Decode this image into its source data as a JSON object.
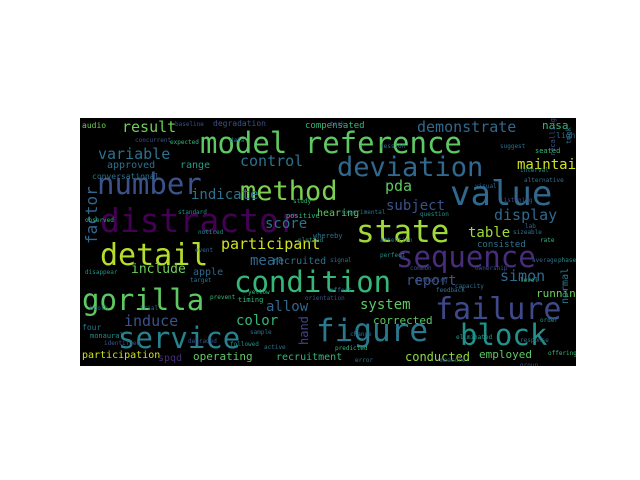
{
  "words": [
    {
      "text": "model reference",
      "color": "#5ec962"
    },
    {
      "text": "number",
      "color": "#3b528b"
    },
    {
      "text": "method",
      "color": "#7ad151"
    },
    {
      "text": "deviation",
      "color": "#31688e"
    },
    {
      "text": "value",
      "color": "#31688e"
    },
    {
      "text": "distractor",
      "color": "#440154"
    },
    {
      "text": "state",
      "color": "#a0da39"
    },
    {
      "text": "detail",
      "color": "#b5de2b"
    },
    {
      "text": "condition",
      "color": "#35b779"
    },
    {
      "text": "sequence",
      "color": "#472d7b"
    },
    {
      "text": "gorilla",
      "color": "#5ec962"
    },
    {
      "text": "failure",
      "color": "#3e4989"
    },
    {
      "text": "service",
      "color": "#26828e"
    },
    {
      "text": "figure",
      "color": "#2a788e"
    },
    {
      "text": "block",
      "color": "#21918c"
    },
    {
      "text": "variable",
      "color": "#2c728e"
    },
    {
      "text": "result",
      "color": "#6ece58"
    },
    {
      "text": "control",
      "color": "#2c728e"
    },
    {
      "text": "demonstrate",
      "color": "#31688e"
    },
    {
      "text": "maintain",
      "color": "#d2e21b"
    },
    {
      "text": "factor",
      "color": "#31688e"
    },
    {
      "text": "pda",
      "color": "#5ec962"
    },
    {
      "text": "indicate",
      "color": "#2c728e"
    },
    {
      "text": "subject",
      "color": "#3b528b"
    },
    {
      "text": "display",
      "color": "#31688e"
    },
    {
      "text": "participant",
      "color": "#d2e21b"
    },
    {
      "text": "table",
      "color": "#a0da39"
    },
    {
      "text": "score",
      "color": "#2c728e"
    },
    {
      "text": "mean",
      "color": "#31688e"
    },
    {
      "text": "color",
      "color": "#35b779"
    },
    {
      "text": "include",
      "color": "#6ece58"
    },
    {
      "text": "report",
      "color": "#3b528b"
    },
    {
      "text": "simon",
      "color": "#31688e"
    },
    {
      "text": "induce",
      "color": "#3b528b"
    },
    {
      "text": "allow",
      "color": "#31688e"
    },
    {
      "text": "system",
      "color": "#5ec962"
    },
    {
      "text": "running",
      "color": "#6ece58"
    },
    {
      "text": "corrected",
      "color": "#5ec962"
    },
    {
      "text": "conducted",
      "color": "#90d743"
    },
    {
      "text": "employed",
      "color": "#5ec962"
    },
    {
      "text": "recruitment",
      "color": "#35b779"
    },
    {
      "text": "operating",
      "color": "#5ec962"
    },
    {
      "text": "participation",
      "color": "#d2e21b"
    },
    {
      "text": "recruited",
      "color": "#2c728e"
    },
    {
      "text": "hearing",
      "color": "#5ec962"
    },
    {
      "text": "approved",
      "color": "#2c728e"
    },
    {
      "text": "range",
      "color": "#1f9e89"
    },
    {
      "text": "compensated",
      "color": "#35b779"
    },
    {
      "text": "consisted",
      "color": "#2c728e"
    },
    {
      "text": "nasa",
      "color": "#35b779"
    },
    {
      "text": "normal",
      "color": "#2a788e"
    },
    {
      "text": "apple",
      "color": "#31688e"
    },
    {
      "text": "conversational",
      "color": "#2c728e"
    },
    {
      "text": "audio",
      "color": "#6ece58"
    },
    {
      "text": "degradation",
      "color": "#3b528b"
    },
    {
      "text": "four",
      "color": "#2c728e"
    },
    {
      "text": "spqd",
      "color": "#472d7b"
    },
    {
      "text": "hand",
      "color": "#414487"
    },
    {
      "text": "timing",
      "color": "#35b779"
    },
    {
      "text": "monaural",
      "color": "#21918c"
    },
    {
      "text": "recalling",
      "color": "#3b528b"
    },
    {
      "text": "positive",
      "color": "#35b779"
    },
    {
      "text": "whereby",
      "color": "#2c728e"
    },
    {
      "text": "gathering",
      "color": "#3b528b"
    },
    {
      "text": "sizeable",
      "color": "#2c728e"
    },
    {
      "text": "plotted",
      "color": "#21918c"
    },
    {
      "text": "offering",
      "color": "#35b779"
    },
    {
      "text": "feedback",
      "color": "#2c728e"
    },
    {
      "text": "eliminated",
      "color": "#1f9e89"
    },
    {
      "text": "degraded",
      "color": "#3b528b"
    },
    {
      "text": "prevent",
      "color": "#35b779"
    },
    {
      "text": "attention",
      "color": "#2c728e"
    },
    {
      "text": "listening",
      "color": "#3b528b"
    },
    {
      "text": "question",
      "color": "#21918c"
    },
    {
      "text": "capacity",
      "color": "#2c728e"
    },
    {
      "text": "seated",
      "color": "#35b779"
    },
    {
      "text": "light",
      "color": "#31688e"
    },
    {
      "text": "took",
      "color": "#2c728e"
    },
    {
      "text": "ownership",
      "color": "#3b528b"
    },
    {
      "text": "perfect",
      "color": "#21918c"
    },
    {
      "text": "booth",
      "color": "#2c728e"
    },
    {
      "text": "yellow",
      "color": "#35b779"
    },
    {
      "text": "lab",
      "color": "#31688e"
    },
    {
      "text": "identified",
      "color": "#3b528b"
    },
    {
      "text": "disappear",
      "color": "#21918c"
    },
    {
      "text": "alternative",
      "color": "#2c728e"
    },
    {
      "text": "orientation",
      "color": "#3b528b"
    },
    {
      "text": "experimental",
      "color": "#2c728e"
    },
    {
      "text": "standard",
      "color": "#21918c"
    },
    {
      "text": "average",
      "color": "#31688e"
    },
    {
      "text": "predicted",
      "color": "#35b779"
    },
    {
      "text": "active",
      "color": "#2c728e"
    },
    {
      "text": "concurrent",
      "color": "#3b528b"
    },
    {
      "text": "followed",
      "color": "#21918c"
    },
    {
      "text": "session",
      "color": "#2c728e"
    },
    {
      "text": "response",
      "color": "#31688e"
    },
    {
      "text": "expected",
      "color": "#35b779"
    },
    {
      "text": "suggest",
      "color": "#2c728e"
    },
    {
      "text": "common",
      "color": "#3b528b"
    },
    {
      "text": "noticed",
      "color": "#21918c"
    },
    {
      "text": "signal",
      "color": "#2c728e"
    },
    {
      "text": "trial",
      "color": "#31688e"
    },
    {
      "text": "level",
      "color": "#35b779"
    },
    {
      "text": "error",
      "color": "#2c728e"
    },
    {
      "text": "task",
      "color": "#3b528b"
    },
    {
      "text": "order",
      "color": "#21918c"
    },
    {
      "text": "target",
      "color": "#2c728e"
    },
    {
      "text": "visual",
      "color": "#31688e"
    },
    {
      "text": "study",
      "color": "#35b779"
    },
    {
      "text": "data",
      "color": "#2c728e"
    },
    {
      "text": "group",
      "color": "#3b528b"
    },
    {
      "text": "phase",
      "color": "#21918c"
    },
    {
      "text": "effect",
      "color": "#2c728e"
    },
    {
      "text": "event",
      "color": "#31688e"
    },
    {
      "text": "rate",
      "color": "#35b779"
    },
    {
      "text": "change",
      "color": "#2c728e"
    },
    {
      "text": "baseline",
      "color": "#3b528b"
    },
    {
      "text": "interval",
      "color": "#21918c"
    },
    {
      "text": "sample",
      "color": "#2c728e"
    },
    {
      "text": "measure",
      "color": "#31688e"
    },
    {
      "text": "observed",
      "color": "#35b779"
    },
    {
      "text": "shown",
      "color": "#2c728e"
    }
  ]
}
